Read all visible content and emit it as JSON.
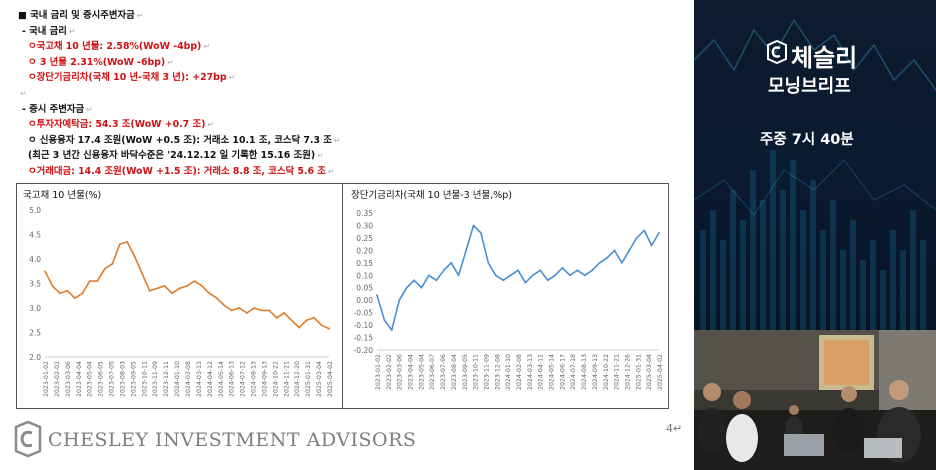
{
  "doc": {
    "section1_heading": "■ 국내 금리 및 증시주변자금",
    "sub1_heading": "- 국내 금리",
    "rate_items": [
      "ㅇ국고채 10 년물: 2.58%(WoW -4bp)",
      "ㅇ 3 년물 2.31%(WoW -6bp)",
      "ㅇ장단기금리차(국채 10 년-국채 3 년): +27bp"
    ],
    "sub2_heading": "- 증시 주변자금",
    "fund_items": [
      {
        "text": "ㅇ투자자예탁금: 54.3 조(WoW +0.7 조)",
        "red": true
      },
      {
        "text": "ㅇ 신용융자 17.4 조원(WoW +0.5 조): 거래소 10.1 조, 코스닥 7.3 조",
        "red": false
      },
      {
        "text": "(최근 3 년간 신용융자 바닥수준은 '24.12.12 일 기록한 15.16 조원)",
        "red": false
      },
      {
        "text": "ㅇ거래대금: 14.4 조원(WoW +1.5 조): 거래소 8.8 조, 코스닥 5.6 조",
        "red": true
      }
    ],
    "paragraph_mark": "↵",
    "page_number": "4↵",
    "footer_brand": "CHESLEY INVESTMENT ADVISORS"
  },
  "chart_data": [
    {
      "type": "line",
      "title": "국고채 10 년물(%)",
      "ylim": [
        2.0,
        5.0
      ],
      "yticks": [
        "5.0",
        "4.5",
        "4.0",
        "3.5",
        "3.0",
        "2.5",
        "2.0"
      ],
      "xticks": [
        "2023-01-02",
        "2023-02-02",
        "2023-03-06",
        "2023-04-04",
        "2023-05-04",
        "2023-06-05",
        "2023-07-05",
        "2023-08-03",
        "2023-09-05",
        "2023-10-11",
        "2023-11-09",
        "2023-12-11",
        "2024-01-10",
        "2024-02-08",
        "2024-03-13",
        "2024-04-12",
        "2024-05-14",
        "2024-06-13",
        "2024-07-12",
        "2024-08-13",
        "2024-09-13",
        "2024-10-22",
        "2024-11-21",
        "2024-12-20",
        "2025-01-31",
        "2025-03-04",
        "2025-04-02"
      ],
      "color": "#e07b2a",
      "series": [
        {
          "values": [
            3.75,
            3.45,
            3.3,
            3.35,
            3.2,
            3.3,
            3.55,
            3.55,
            3.8,
            3.9,
            4.3,
            4.35,
            4.05,
            3.7,
            3.35,
            3.4,
            3.45,
            3.3,
            3.4,
            3.45,
            3.55,
            3.45,
            3.3,
            3.2,
            3.05,
            2.95,
            3.0,
            2.9,
            3.0,
            2.95,
            2.95,
            2.8,
            2.9,
            2.75,
            2.6,
            2.75,
            2.8,
            2.65,
            2.58
          ]
        }
      ]
    },
    {
      "type": "line",
      "title": "장단기금리차(국채 10 년물-3 년물,%p)",
      "ylim": [
        -0.2,
        0.35
      ],
      "yticks": [
        "0.35",
        "0.30",
        "0.25",
        "0.20",
        "0.15",
        "0.10",
        "0.05",
        "0.00",
        "-0.05",
        "-0.10",
        "-0.15",
        "-0.20"
      ],
      "xticks": [
        "2023-01-02",
        "2023-02-02",
        "2023-03-06",
        "2023-04-04",
        "2023-05-04",
        "2023-06-07",
        "2023-07-06",
        "2023-08-04",
        "2023-09-05",
        "2023-10-11",
        "2023-11-09",
        "2023-12-08",
        "2024-01-10",
        "2024-02-08",
        "2024-03-13",
        "2024-04-12",
        "2024-05-14",
        "2024-06-17",
        "2024-07-18",
        "2024-08-13",
        "2024-09-13",
        "2024-10-22",
        "2024-11-21",
        "2024-12-26",
        "2025-01-31",
        "2025-03-04",
        "2025-04-02"
      ],
      "color": "#4b8fcf",
      "series": [
        {
          "values": [
            0.02,
            -0.08,
            -0.12,
            0.0,
            0.05,
            0.08,
            0.05,
            0.1,
            0.08,
            0.12,
            0.15,
            0.1,
            0.2,
            0.3,
            0.27,
            0.15,
            0.1,
            0.08,
            0.1,
            0.12,
            0.07,
            0.1,
            0.12,
            0.08,
            0.1,
            0.13,
            0.1,
            0.12,
            0.1,
            0.12,
            0.15,
            0.17,
            0.2,
            0.15,
            0.2,
            0.25,
            0.28,
            0.22,
            0.27
          ]
        }
      ]
    }
  ],
  "brand": {
    "title": "체슬리",
    "subtitle": "모닝브리프",
    "schedule": "주중 7시 40분"
  }
}
